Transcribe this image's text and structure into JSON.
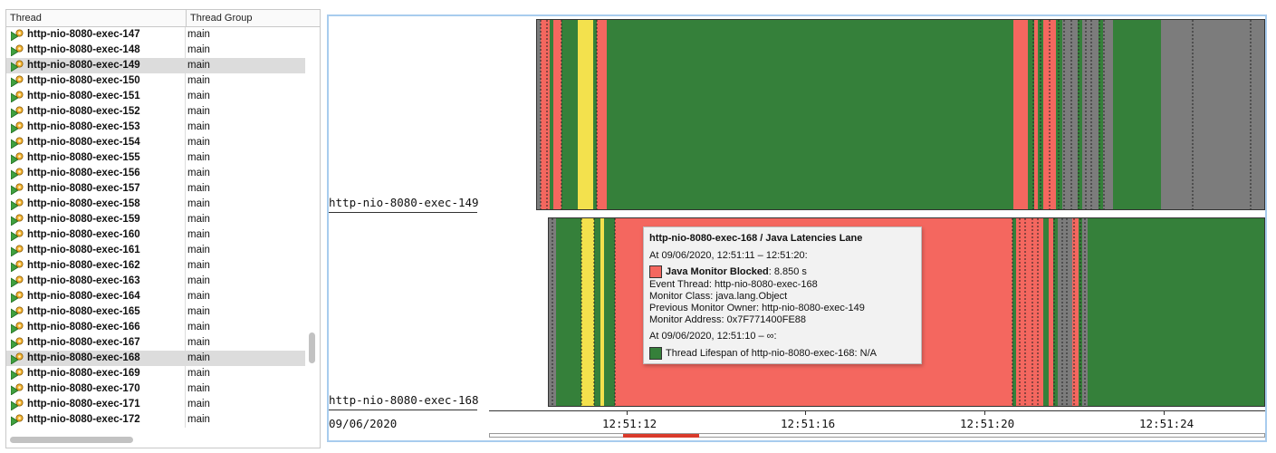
{
  "table": {
    "columns": {
      "thread": "Thread",
      "group": "Thread Group"
    },
    "rows": [
      {
        "name": "http-nio-8080-exec-147",
        "group": "main",
        "selected": false
      },
      {
        "name": "http-nio-8080-exec-148",
        "group": "main",
        "selected": false
      },
      {
        "name": "http-nio-8080-exec-149",
        "group": "main",
        "selected": true
      },
      {
        "name": "http-nio-8080-exec-150",
        "group": "main",
        "selected": false
      },
      {
        "name": "http-nio-8080-exec-151",
        "group": "main",
        "selected": false
      },
      {
        "name": "http-nio-8080-exec-152",
        "group": "main",
        "selected": false
      },
      {
        "name": "http-nio-8080-exec-153",
        "group": "main",
        "selected": false
      },
      {
        "name": "http-nio-8080-exec-154",
        "group": "main",
        "selected": false
      },
      {
        "name": "http-nio-8080-exec-155",
        "group": "main",
        "selected": false
      },
      {
        "name": "http-nio-8080-exec-156",
        "group": "main",
        "selected": false
      },
      {
        "name": "http-nio-8080-exec-157",
        "group": "main",
        "selected": false
      },
      {
        "name": "http-nio-8080-exec-158",
        "group": "main",
        "selected": false
      },
      {
        "name": "http-nio-8080-exec-159",
        "group": "main",
        "selected": false
      },
      {
        "name": "http-nio-8080-exec-160",
        "group": "main",
        "selected": false
      },
      {
        "name": "http-nio-8080-exec-161",
        "group": "main",
        "selected": false
      },
      {
        "name": "http-nio-8080-exec-162",
        "group": "main",
        "selected": false
      },
      {
        "name": "http-nio-8080-exec-163",
        "group": "main",
        "selected": false
      },
      {
        "name": "http-nio-8080-exec-164",
        "group": "main",
        "selected": false
      },
      {
        "name": "http-nio-8080-exec-165",
        "group": "main",
        "selected": false
      },
      {
        "name": "http-nio-8080-exec-166",
        "group": "main",
        "selected": false
      },
      {
        "name": "http-nio-8080-exec-167",
        "group": "main",
        "selected": false
      },
      {
        "name": "http-nio-8080-exec-168",
        "group": "main",
        "selected": true
      },
      {
        "name": "http-nio-8080-exec-169",
        "group": "main",
        "selected": false
      },
      {
        "name": "http-nio-8080-exec-170",
        "group": "main",
        "selected": false
      },
      {
        "name": "http-nio-8080-exec-171",
        "group": "main",
        "selected": false
      },
      {
        "name": "http-nio-8080-exec-172",
        "group": "main",
        "selected": false
      }
    ],
    "row_icon": "running-thread-icon"
  },
  "colors": {
    "running": "#35803a",
    "blocked": "#f4675f",
    "yellow": "#f3e14d",
    "idle": "#7c7c7c",
    "selection": "#dcdcdc",
    "frame_border": "#a8ccee",
    "range_selection": "#d93a2b"
  },
  "lanes": [
    {
      "label": "http-nio-8080-exec-149"
    },
    {
      "label": "http-nio-8080-exec-168"
    }
  ],
  "axis": {
    "date": "09/06/2020",
    "ticks": [
      "12:51:12",
      "12:51:16",
      "12:51:20",
      "12:51:24"
    ]
  },
  "tooltip": {
    "title": "http-nio-8080-exec-168 / Java Latencies Lane",
    "range1": "At 09/06/2020, 12:51:11 – 12:51:20:",
    "event_name": "Java Monitor Blocked",
    "event_duration": ": 8.850 s",
    "event_thread": "Event Thread: http-nio-8080-exec-168",
    "monitor_class": "Monitor Class: java.lang.Object",
    "previous_owner": "Previous Monitor Owner: http-nio-8080-exec-149",
    "monitor_address": "Monitor Address: 0x7F771400FE88",
    "range2": "At 09/06/2020, 12:51:10 – ∞:",
    "lifespan": "Thread Lifespan of http-nio-8080-exec-168: N/A"
  }
}
